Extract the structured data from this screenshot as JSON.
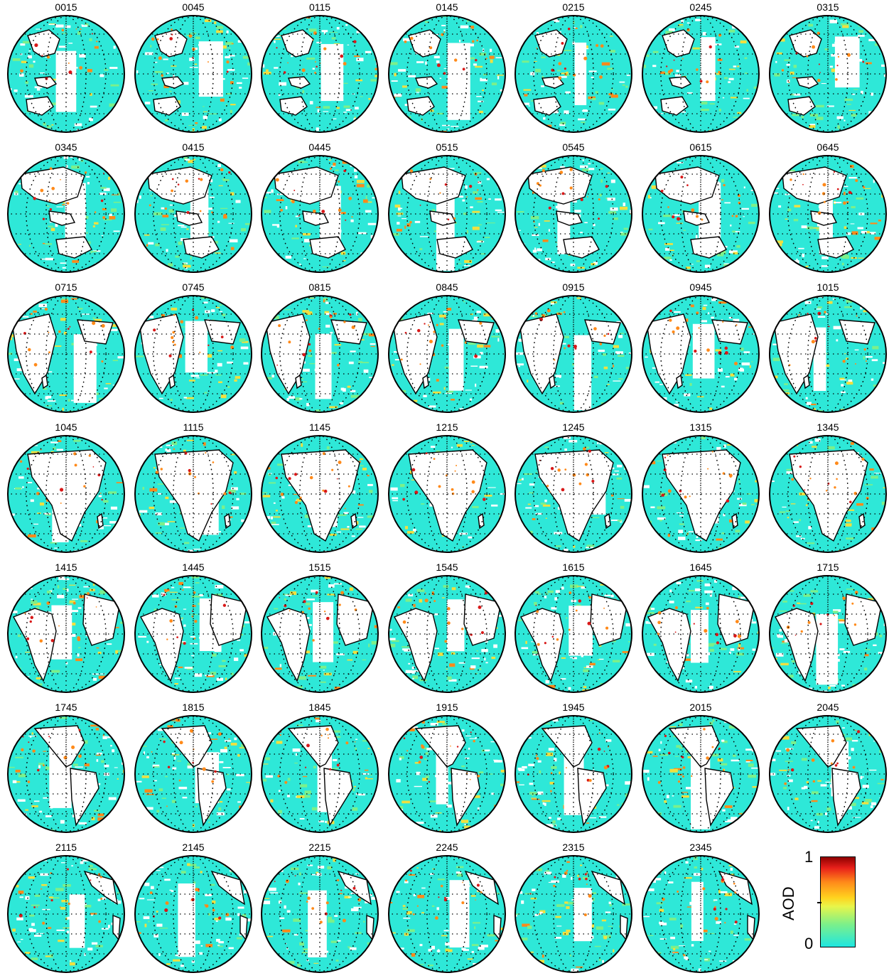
{
  "panels": [
    {
      "time": "0015",
      "view": "pacific"
    },
    {
      "time": "0045",
      "view": "pacific"
    },
    {
      "time": "0115",
      "view": "pacific"
    },
    {
      "time": "0145",
      "view": "pacific"
    },
    {
      "time": "0215",
      "view": "pacific"
    },
    {
      "time": "0245",
      "view": "pacific"
    },
    {
      "time": "0315",
      "view": "pacific"
    },
    {
      "time": "0345",
      "view": "asia"
    },
    {
      "time": "0415",
      "view": "asia"
    },
    {
      "time": "0445",
      "view": "asia"
    },
    {
      "time": "0515",
      "view": "asia"
    },
    {
      "time": "0545",
      "view": "asia"
    },
    {
      "time": "0615",
      "view": "asia"
    },
    {
      "time": "0645",
      "view": "asia"
    },
    {
      "time": "0715",
      "view": "indian"
    },
    {
      "time": "0745",
      "view": "indian"
    },
    {
      "time": "0815",
      "view": "indian"
    },
    {
      "time": "0845",
      "view": "indian"
    },
    {
      "time": "0915",
      "view": "indian"
    },
    {
      "time": "0945",
      "view": "indian"
    },
    {
      "time": "1015",
      "view": "indian"
    },
    {
      "time": "1045",
      "view": "africa"
    },
    {
      "time": "1115",
      "view": "africa"
    },
    {
      "time": "1145",
      "view": "africa"
    },
    {
      "time": "1215",
      "view": "africa"
    },
    {
      "time": "1245",
      "view": "africa"
    },
    {
      "time": "1315",
      "view": "africa"
    },
    {
      "time": "1345",
      "view": "africa"
    },
    {
      "time": "1415",
      "view": "atlantic"
    },
    {
      "time": "1445",
      "view": "atlantic"
    },
    {
      "time": "1515",
      "view": "atlantic"
    },
    {
      "time": "1545",
      "view": "atlantic"
    },
    {
      "time": "1615",
      "view": "atlantic"
    },
    {
      "time": "1645",
      "view": "atlantic"
    },
    {
      "time": "1715",
      "view": "atlantic"
    },
    {
      "time": "1745",
      "view": "americas"
    },
    {
      "time": "1815",
      "view": "americas"
    },
    {
      "time": "1845",
      "view": "americas"
    },
    {
      "time": "1915",
      "view": "americas"
    },
    {
      "time": "1945",
      "view": "americas"
    },
    {
      "time": "2015",
      "view": "americas"
    },
    {
      "time": "2045",
      "view": "americas"
    },
    {
      "time": "2115",
      "view": "eastpacific"
    },
    {
      "time": "2145",
      "view": "eastpacific"
    },
    {
      "time": "2215",
      "view": "eastpacific"
    },
    {
      "time": "2245",
      "view": "eastpacific"
    },
    {
      "time": "2315",
      "view": "eastpacific"
    },
    {
      "time": "2345",
      "view": "eastpacific"
    }
  ],
  "colorbar": {
    "label": "AOD",
    "max_label": "1",
    "min_label": "0",
    "range": [
      0,
      1
    ],
    "colors": [
      "#1fe6e0",
      "#7cf08a",
      "#e8f54a",
      "#ffd21e",
      "#ff8a1a",
      "#e8201a",
      "#8e0000"
    ]
  },
  "colors": {
    "ocean_aod_low": "#2ee8d8",
    "land_outline": "#000000",
    "high_aod": "#d81818",
    "mid_aod": "#f0e040"
  }
}
